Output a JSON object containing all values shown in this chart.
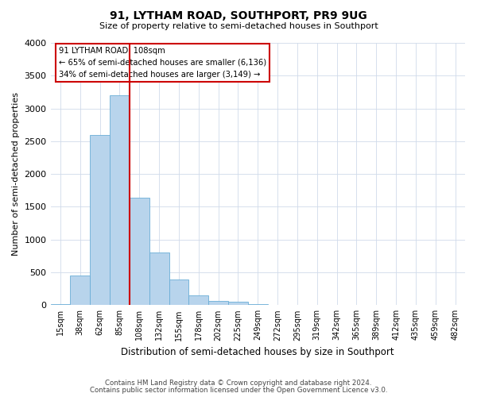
{
  "title": "91, LYTHAM ROAD, SOUTHPORT, PR9 9UG",
  "subtitle": "Size of property relative to semi-detached houses in Southport",
  "xlabel": "Distribution of semi-detached houses by size in Southport",
  "ylabel": "Number of semi-detached properties",
  "bin_labels": [
    "15sqm",
    "38sqm",
    "62sqm",
    "85sqm",
    "108sqm",
    "132sqm",
    "155sqm",
    "178sqm",
    "202sqm",
    "225sqm",
    "249sqm",
    "272sqm",
    "295sqm",
    "319sqm",
    "342sqm",
    "365sqm",
    "389sqm",
    "412sqm",
    "435sqm",
    "459sqm",
    "482sqm"
  ],
  "bar_values": [
    20,
    450,
    2600,
    3200,
    1640,
    800,
    390,
    155,
    60,
    50,
    20,
    8,
    5,
    2,
    1,
    1,
    1,
    0,
    0,
    0,
    0
  ],
  "bar_color": "#b8d4ec",
  "bar_edgecolor": "#6aaed6",
  "vline_color": "#cc0000",
  "vline_index": 4,
  "annotation_title": "91 LYTHAM ROAD: 108sqm",
  "annotation_line1": "← 65% of semi-detached houses are smaller (6,136)",
  "annotation_line2": "34% of semi-detached houses are larger (3,149) →",
  "annotation_box_edgecolor": "#cc0000",
  "ylim": [
    0,
    4000
  ],
  "yticks": [
    0,
    500,
    1000,
    1500,
    2000,
    2500,
    3000,
    3500,
    4000
  ],
  "footer1": "Contains HM Land Registry data © Crown copyright and database right 2024.",
  "footer2": "Contains public sector information licensed under the Open Government Licence v3.0.",
  "bg_color": "#ffffff",
  "plot_bg_color": "#ffffff",
  "grid_color": "#d0daea"
}
